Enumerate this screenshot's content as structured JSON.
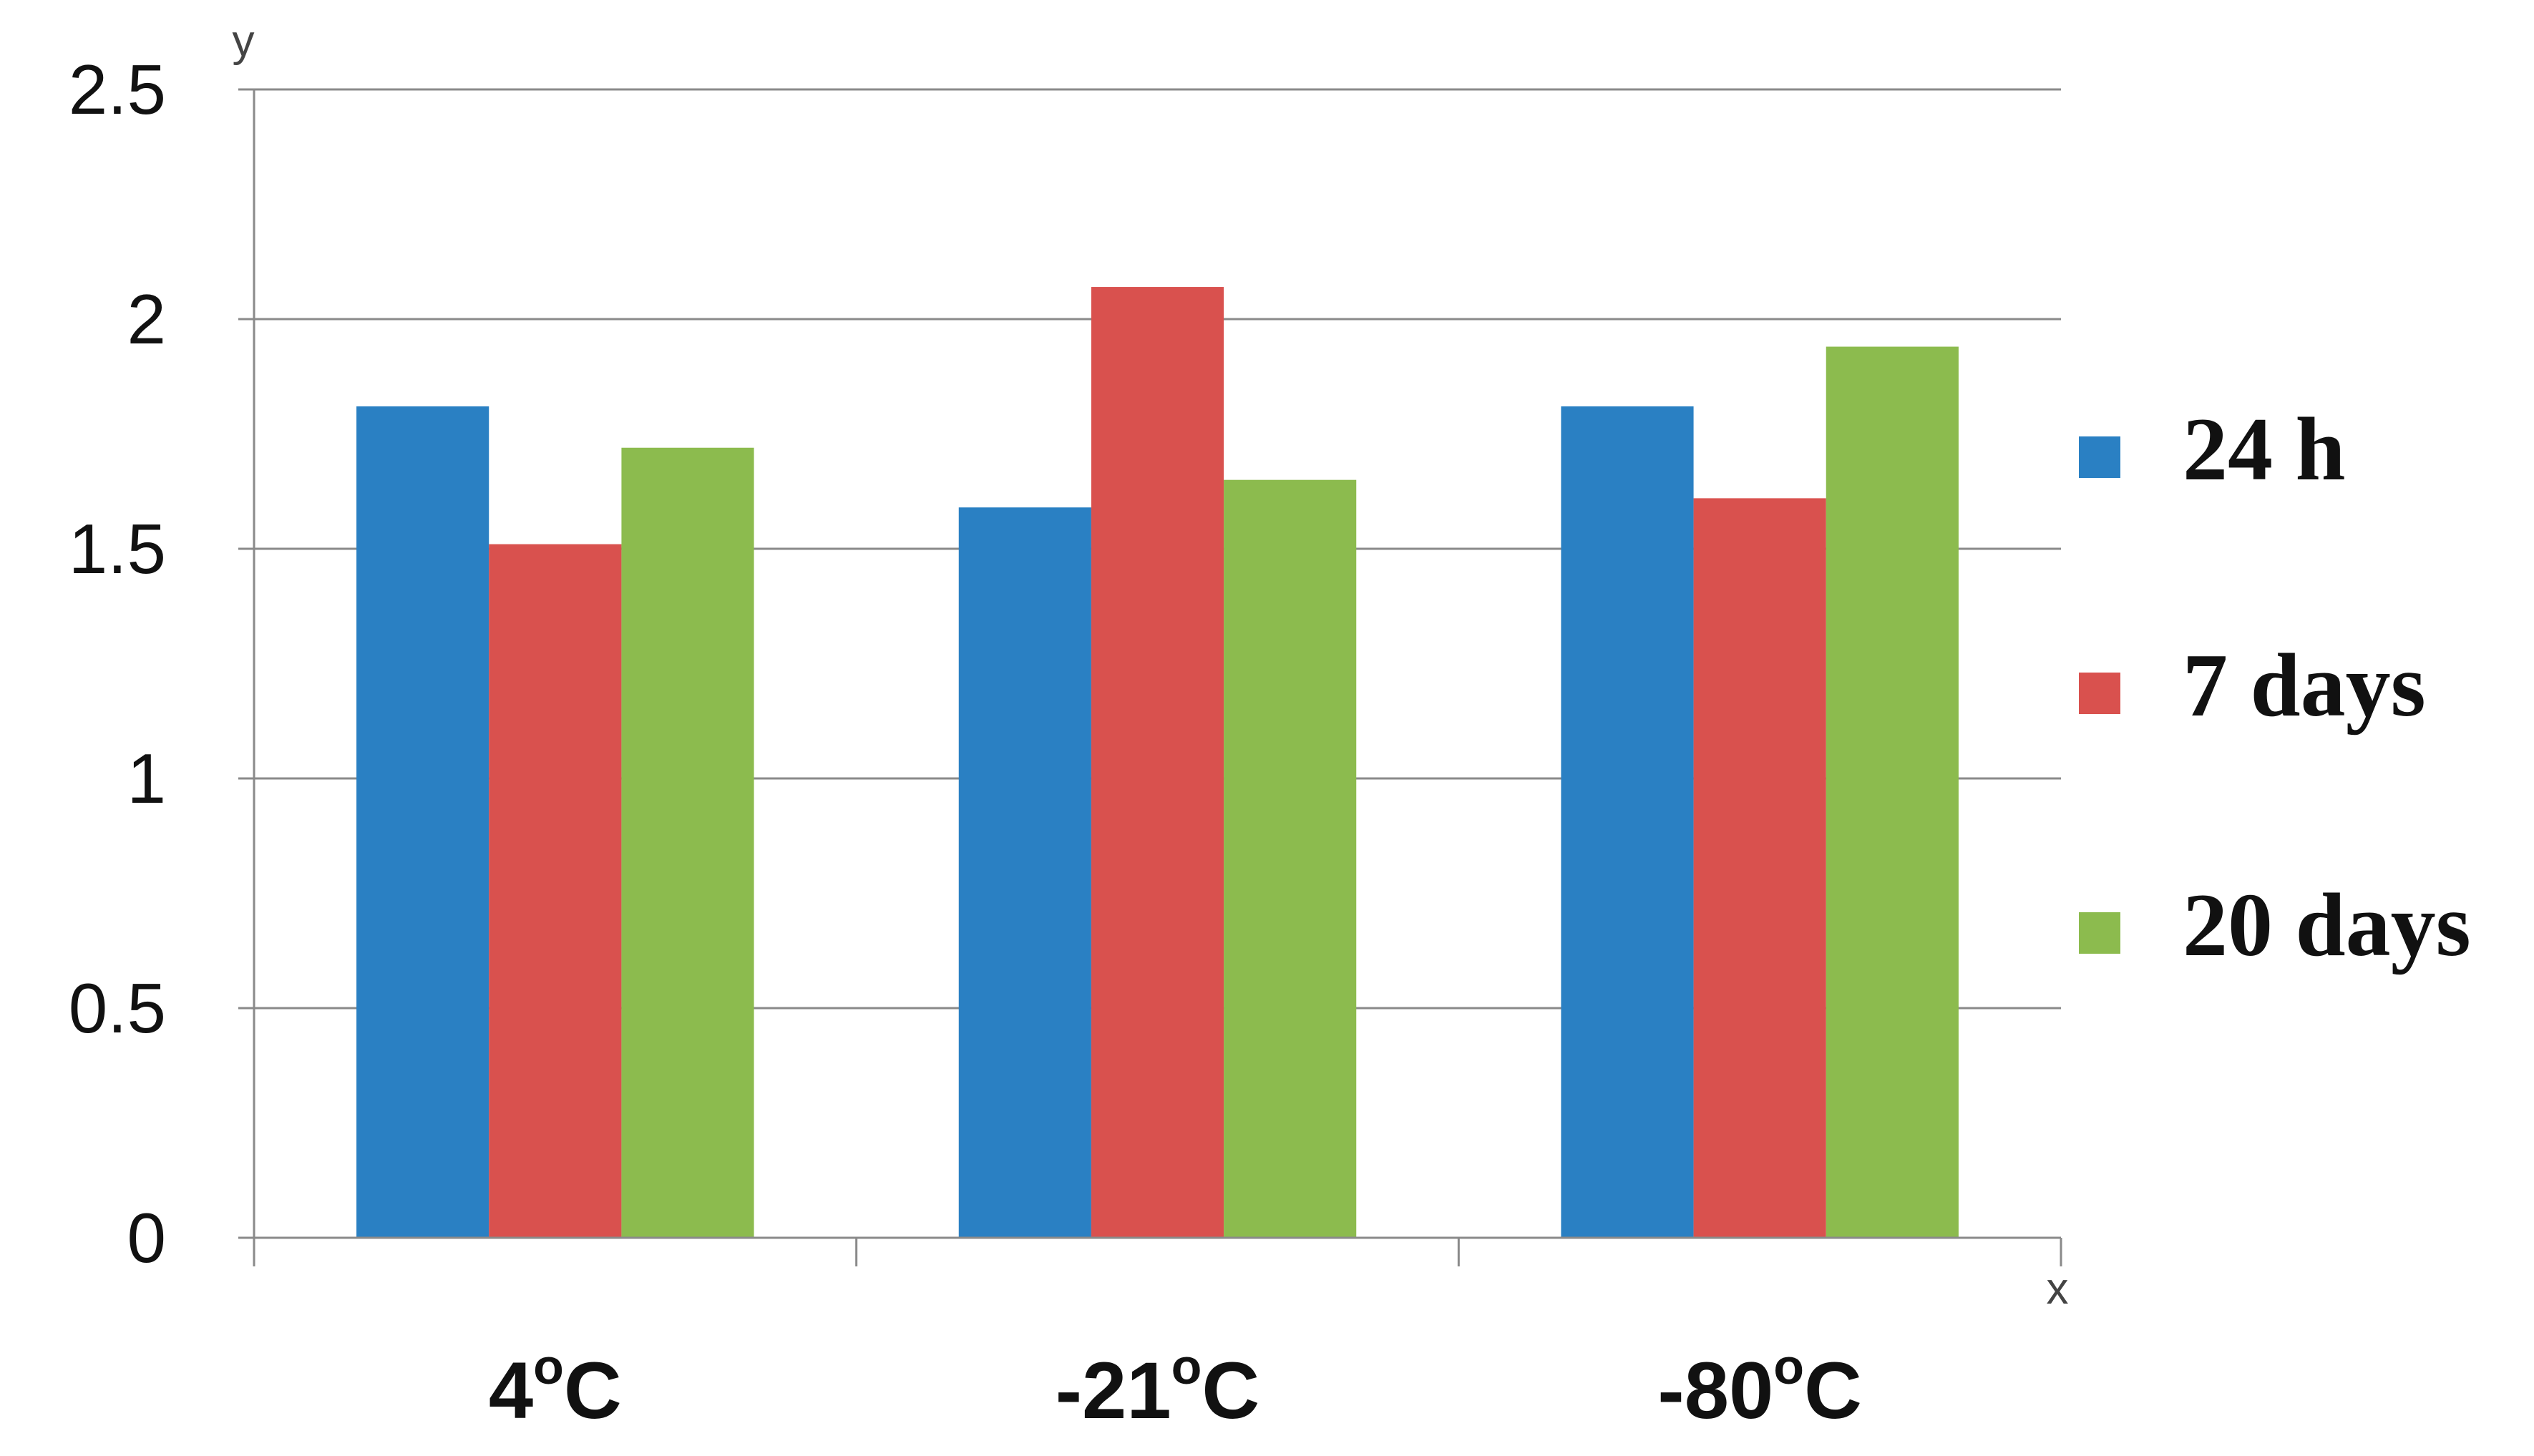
{
  "chart_data": {
    "type": "bar",
    "categories": [
      {
        "main": "4",
        "sup": "o",
        "unit": "C"
      },
      {
        "main": "-21",
        "sup": "o",
        "unit": "C"
      },
      {
        "main": "-80",
        "sup": "o",
        "unit": "C"
      }
    ],
    "series": [
      {
        "name": "24 h",
        "color": "#2a80c3",
        "values": [
          1.81,
          1.59,
          1.81
        ]
      },
      {
        "name": "7 days",
        "color": "#d9514e",
        "values": [
          1.51,
          2.07,
          1.61
        ]
      },
      {
        "name": "20 days",
        "color": "#8cbb4e",
        "values": [
          1.72,
          1.65,
          1.94
        ]
      }
    ],
    "y_ticks": [
      "0",
      "0.5",
      "1",
      "1.5",
      "2",
      "2.5"
    ],
    "ylim": [
      0,
      2.5
    ],
    "xlabel": "x",
    "ylabel": "y",
    "grid": true,
    "legend_placement": "right"
  }
}
